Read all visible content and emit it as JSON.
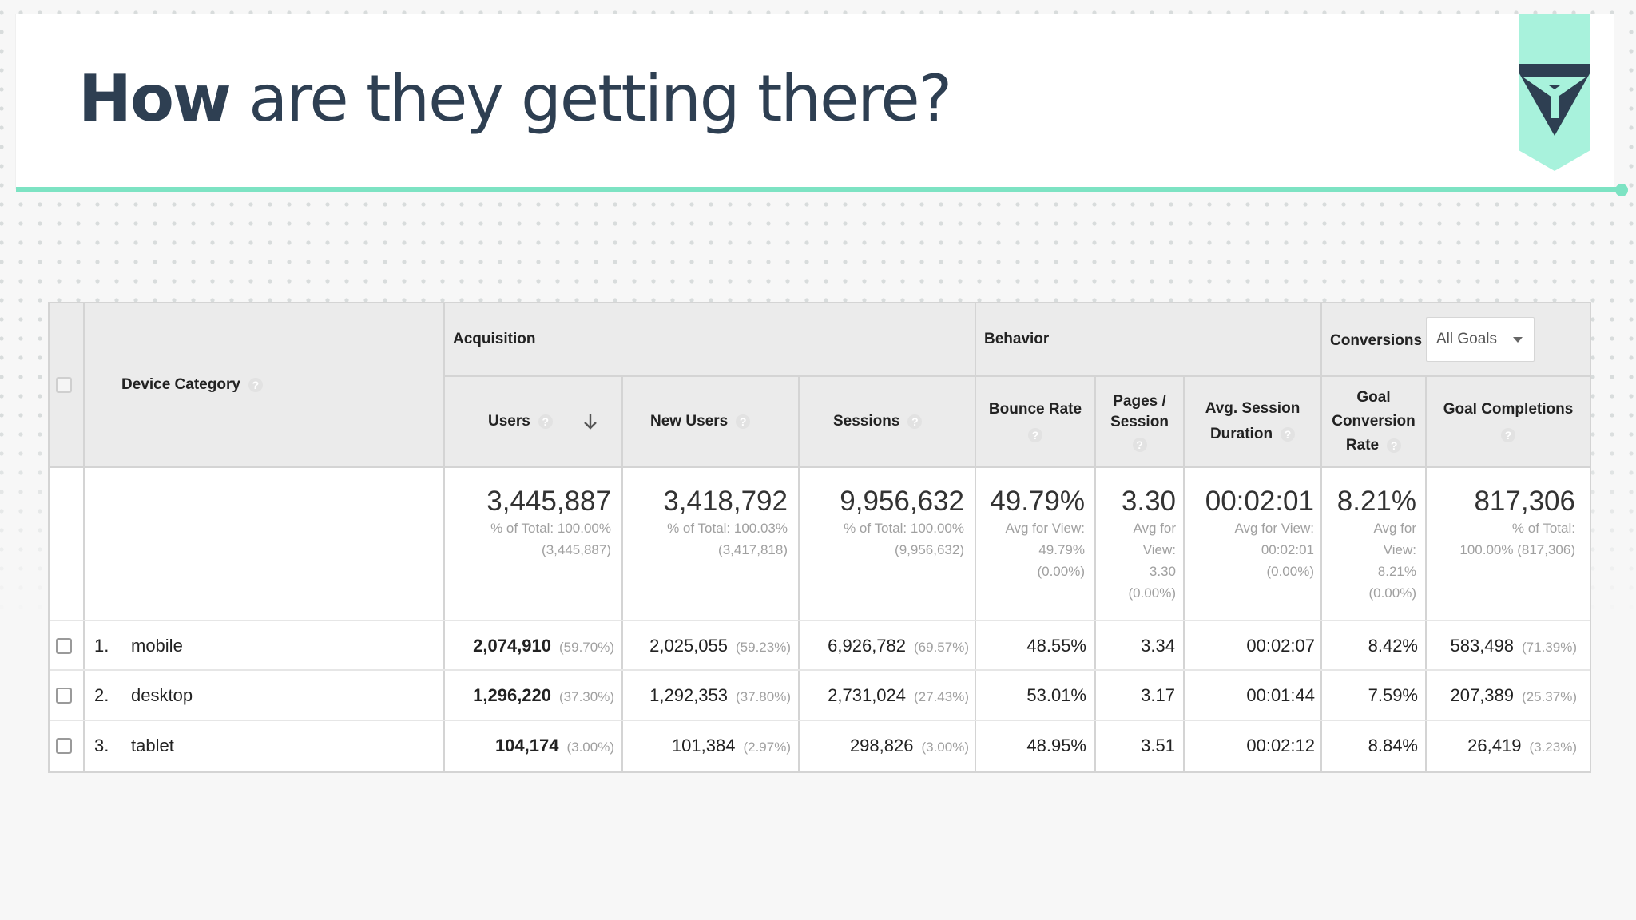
{
  "slide": {
    "title_bold": "How",
    "title_rest": " are they getting there?"
  },
  "colors": {
    "accent": "#7de3c3",
    "title": "#2e3f52",
    "logo": "#2e3f52"
  },
  "table": {
    "groups": {
      "acquisition": "Acquisition",
      "behavior": "Behavior",
      "conversions": "Conversions",
      "goals_select": "All Goals"
    },
    "columns": {
      "device": "Device Category",
      "users": "Users",
      "new_users": "New Users",
      "sessions": "Sessions",
      "bounce_rate": "Bounce Rate",
      "pages_session_1": "Pages /",
      "pages_session_2": "Session",
      "avg_dur_1": "Avg. Session",
      "avg_dur_2": "Duration",
      "goal_conv_1": "Goal",
      "goal_conv_2": "Conversion",
      "goal_conv_3": "Rate",
      "goal_completions": "Goal Completions"
    },
    "totals": {
      "users": {
        "value": "3,445,887",
        "l1": "% of Total: 100.00%",
        "l2": "(3,445,887)"
      },
      "new_users": {
        "value": "3,418,792",
        "l1": "% of Total: 100.03%",
        "l2": "(3,417,818)"
      },
      "sessions": {
        "value": "9,956,632",
        "l1": "% of Total: 100.00%",
        "l2": "(9,956,632)"
      },
      "bounce_rate": {
        "value": "49.79%",
        "l1": "Avg for View:",
        "l2": "49.79%",
        "l3": "(0.00%)"
      },
      "pages_session": {
        "value": "3.30",
        "l1": "Avg for",
        "l2": "View:",
        "l3": "3.30",
        "l4": "(0.00%)"
      },
      "avg_duration": {
        "value": "00:02:01",
        "l1": "Avg for View:",
        "l2": "00:02:01",
        "l3": "(0.00%)"
      },
      "goal_conv": {
        "value": "8.21%",
        "l1": "Avg for",
        "l2": "View:",
        "l3": "8.21%",
        "l4": "(0.00%)"
      },
      "goal_completions": {
        "value": "817,306",
        "l1": "% of Total:",
        "l2": "100.00% (817,306)"
      }
    },
    "rows": [
      {
        "num": "1.",
        "device": "mobile",
        "users": "2,074,910",
        "users_pct": "(59.70%)",
        "new_users": "2,025,055",
        "new_users_pct": "(59.23%)",
        "sessions": "6,926,782",
        "sessions_pct": "(69.57%)",
        "bounce": "48.55%",
        "pages": "3.34",
        "duration": "00:02:07",
        "conv": "8.42%",
        "completions": "583,498",
        "completions_pct": "(71.39%)"
      },
      {
        "num": "2.",
        "device": "desktop",
        "users": "1,296,220",
        "users_pct": "(37.30%)",
        "new_users": "1,292,353",
        "new_users_pct": "(37.80%)",
        "sessions": "2,731,024",
        "sessions_pct": "(27.43%)",
        "bounce": "53.01%",
        "pages": "3.17",
        "duration": "00:01:44",
        "conv": "7.59%",
        "completions": "207,389",
        "completions_pct": "(25.37%)"
      },
      {
        "num": "3.",
        "device": "tablet",
        "users": "104,174",
        "users_pct": "(3.00%)",
        "new_users": "101,384",
        "new_users_pct": "(2.97%)",
        "sessions": "298,826",
        "sessions_pct": "(3.00%)",
        "bounce": "48.95%",
        "pages": "3.51",
        "duration": "00:02:12",
        "conv": "8.84%",
        "completions": "26,419",
        "completions_pct": "(3.23%)"
      }
    ]
  }
}
